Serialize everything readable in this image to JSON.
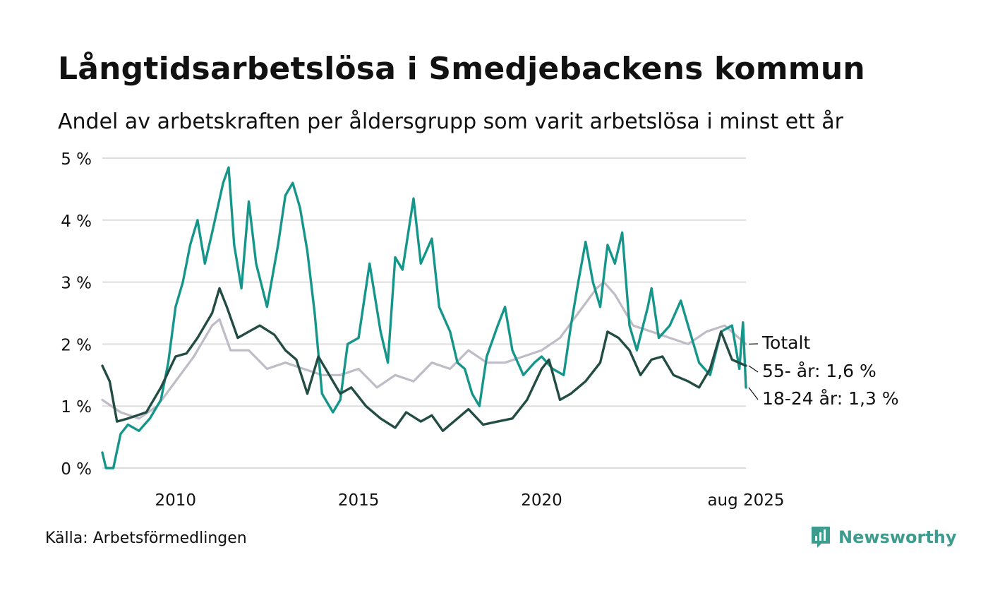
{
  "header": {
    "title": "Långtidsarbetslösa i Smedjebackens kommun",
    "subtitle": "Andel av arbetskraften per åldersgrupp som varit arbetslösa i minst ett år"
  },
  "footer": {
    "source": "Källa: Arbetsförmedlingen",
    "brand": "Newsworthy",
    "brand_icon": "bar-chart-badge-icon"
  },
  "colors": {
    "totalt": "#bfbcc7",
    "age55": "#234c44",
    "age1824": "#16968a",
    "grid": "#dddddd",
    "brand": "#3e9c8f"
  },
  "chart_data": {
    "type": "line",
    "ylim": [
      0,
      5
    ],
    "yticks": [
      0,
      1,
      2,
      3,
      4,
      5
    ],
    "ytick_labels": [
      "0 %",
      "1 %",
      "2 %",
      "3 %",
      "4 %",
      "5 %"
    ],
    "xlim": [
      2008.0,
      2025.58
    ],
    "xticks": [
      2010,
      2015,
      2020,
      2025.58
    ],
    "xtick_labels": [
      "2010",
      "2015",
      "2020",
      "aug 2025"
    ],
    "grid": true,
    "series": [
      {
        "key": "totalt",
        "end_label": "Totalt",
        "points": [
          [
            2008.0,
            1.1
          ],
          [
            2008.5,
            0.9
          ],
          [
            2009.0,
            0.8
          ],
          [
            2009.5,
            1.0
          ],
          [
            2010.0,
            1.4
          ],
          [
            2010.5,
            1.8
          ],
          [
            2011.0,
            2.3
          ],
          [
            2011.2,
            2.4
          ],
          [
            2011.5,
            1.9
          ],
          [
            2012.0,
            1.9
          ],
          [
            2012.5,
            1.6
          ],
          [
            2013.0,
            1.7
          ],
          [
            2013.5,
            1.6
          ],
          [
            2014.0,
            1.5
          ],
          [
            2014.5,
            1.5
          ],
          [
            2015.0,
            1.6
          ],
          [
            2015.5,
            1.3
          ],
          [
            2016.0,
            1.5
          ],
          [
            2016.5,
            1.4
          ],
          [
            2017.0,
            1.7
          ],
          [
            2017.5,
            1.6
          ],
          [
            2018.0,
            1.9
          ],
          [
            2018.5,
            1.7
          ],
          [
            2019.0,
            1.7
          ],
          [
            2019.5,
            1.8
          ],
          [
            2020.0,
            1.9
          ],
          [
            2020.5,
            2.1
          ],
          [
            2021.0,
            2.5
          ],
          [
            2021.5,
            2.9
          ],
          [
            2021.7,
            3.0
          ],
          [
            2022.0,
            2.8
          ],
          [
            2022.5,
            2.3
          ],
          [
            2023.0,
            2.2
          ],
          [
            2023.5,
            2.1
          ],
          [
            2024.0,
            2.0
          ],
          [
            2024.5,
            2.2
          ],
          [
            2025.0,
            2.3
          ],
          [
            2025.58,
            2.0
          ]
        ]
      },
      {
        "key": "age55",
        "end_label": "55- år: 1,6 %",
        "points": [
          [
            2008.0,
            1.65
          ],
          [
            2008.2,
            1.4
          ],
          [
            2008.4,
            0.75
          ],
          [
            2008.7,
            0.8
          ],
          [
            2009.2,
            0.9
          ],
          [
            2009.6,
            1.3
          ],
          [
            2010.0,
            1.8
          ],
          [
            2010.3,
            1.85
          ],
          [
            2010.6,
            2.1
          ],
          [
            2011.0,
            2.5
          ],
          [
            2011.2,
            2.9
          ],
          [
            2011.4,
            2.6
          ],
          [
            2011.7,
            2.1
          ],
          [
            2012.0,
            2.2
          ],
          [
            2012.3,
            2.3
          ],
          [
            2012.7,
            2.15
          ],
          [
            2013.0,
            1.9
          ],
          [
            2013.3,
            1.75
          ],
          [
            2013.6,
            1.2
          ],
          [
            2013.9,
            1.8
          ],
          [
            2014.2,
            1.5
          ],
          [
            2014.5,
            1.2
          ],
          [
            2014.8,
            1.3
          ],
          [
            2015.2,
            1.0
          ],
          [
            2015.6,
            0.8
          ],
          [
            2016.0,
            0.65
          ],
          [
            2016.3,
            0.9
          ],
          [
            2016.7,
            0.75
          ],
          [
            2017.0,
            0.85
          ],
          [
            2017.3,
            0.6
          ],
          [
            2017.7,
            0.8
          ],
          [
            2018.0,
            0.95
          ],
          [
            2018.4,
            0.7
          ],
          [
            2018.8,
            0.75
          ],
          [
            2019.2,
            0.8
          ],
          [
            2019.6,
            1.1
          ],
          [
            2020.0,
            1.6
          ],
          [
            2020.2,
            1.75
          ],
          [
            2020.5,
            1.1
          ],
          [
            2020.8,
            1.2
          ],
          [
            2021.2,
            1.4
          ],
          [
            2021.6,
            1.7
          ],
          [
            2021.8,
            2.2
          ],
          [
            2022.1,
            2.1
          ],
          [
            2022.4,
            1.9
          ],
          [
            2022.7,
            1.5
          ],
          [
            2023.0,
            1.75
          ],
          [
            2023.3,
            1.8
          ],
          [
            2023.6,
            1.5
          ],
          [
            2024.0,
            1.4
          ],
          [
            2024.3,
            1.3
          ],
          [
            2024.6,
            1.6
          ],
          [
            2024.9,
            2.2
          ],
          [
            2025.2,
            1.75
          ],
          [
            2025.58,
            1.65
          ]
        ]
      },
      {
        "key": "age1824",
        "end_label": "18-24 år: 1,3 %",
        "points": [
          [
            2008.0,
            0.25
          ],
          [
            2008.1,
            0.0
          ],
          [
            2008.3,
            0.0
          ],
          [
            2008.5,
            0.55
          ],
          [
            2008.7,
            0.7
          ],
          [
            2009.0,
            0.6
          ],
          [
            2009.3,
            0.8
          ],
          [
            2009.6,
            1.1
          ],
          [
            2009.8,
            1.7
          ],
          [
            2010.0,
            2.6
          ],
          [
            2010.2,
            3.0
          ],
          [
            2010.4,
            3.6
          ],
          [
            2010.6,
            4.0
          ],
          [
            2010.8,
            3.3
          ],
          [
            2011.0,
            3.8
          ],
          [
            2011.3,
            4.6
          ],
          [
            2011.45,
            4.85
          ],
          [
            2011.6,
            3.6
          ],
          [
            2011.8,
            2.9
          ],
          [
            2012.0,
            4.3
          ],
          [
            2012.2,
            3.3
          ],
          [
            2012.5,
            2.6
          ],
          [
            2012.8,
            3.6
          ],
          [
            2013.0,
            4.4
          ],
          [
            2013.2,
            4.6
          ],
          [
            2013.4,
            4.2
          ],
          [
            2013.6,
            3.5
          ],
          [
            2013.8,
            2.5
          ],
          [
            2014.0,
            1.2
          ],
          [
            2014.3,
            0.9
          ],
          [
            2014.5,
            1.1
          ],
          [
            2014.7,
            2.0
          ],
          [
            2015.0,
            2.1
          ],
          [
            2015.3,
            3.3
          ],
          [
            2015.6,
            2.2
          ],
          [
            2015.8,
            1.7
          ],
          [
            2016.0,
            3.4
          ],
          [
            2016.2,
            3.2
          ],
          [
            2016.5,
            4.35
          ],
          [
            2016.7,
            3.3
          ],
          [
            2017.0,
            3.7
          ],
          [
            2017.2,
            2.6
          ],
          [
            2017.5,
            2.2
          ],
          [
            2017.7,
            1.7
          ],
          [
            2017.9,
            1.6
          ],
          [
            2018.1,
            1.2
          ],
          [
            2018.3,
            1.0
          ],
          [
            2018.5,
            1.8
          ],
          [
            2018.8,
            2.3
          ],
          [
            2019.0,
            2.6
          ],
          [
            2019.2,
            1.9
          ],
          [
            2019.5,
            1.5
          ],
          [
            2019.8,
            1.7
          ],
          [
            2020.0,
            1.8
          ],
          [
            2020.3,
            1.6
          ],
          [
            2020.6,
            1.5
          ],
          [
            2020.8,
            2.3
          ],
          [
            2021.0,
            3.0
          ],
          [
            2021.2,
            3.65
          ],
          [
            2021.4,
            3.0
          ],
          [
            2021.6,
            2.6
          ],
          [
            2021.8,
            3.6
          ],
          [
            2022.0,
            3.3
          ],
          [
            2022.2,
            3.8
          ],
          [
            2022.4,
            2.3
          ],
          [
            2022.6,
            1.9
          ],
          [
            2022.9,
            2.6
          ],
          [
            2023.0,
            2.9
          ],
          [
            2023.2,
            2.1
          ],
          [
            2023.5,
            2.3
          ],
          [
            2023.8,
            2.7
          ],
          [
            2024.0,
            2.3
          ],
          [
            2024.3,
            1.7
          ],
          [
            2024.6,
            1.5
          ],
          [
            2024.9,
            2.2
          ],
          [
            2025.2,
            2.3
          ],
          [
            2025.4,
            1.6
          ],
          [
            2025.5,
            2.35
          ],
          [
            2025.58,
            1.3
          ]
        ]
      }
    ]
  }
}
